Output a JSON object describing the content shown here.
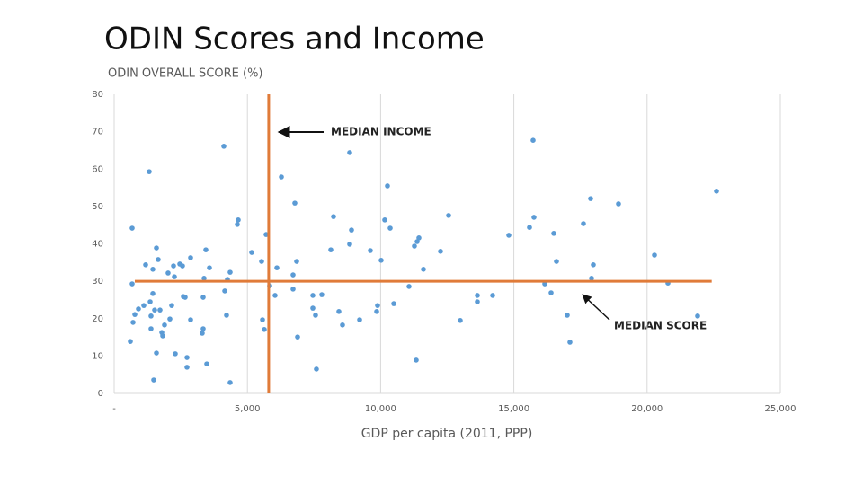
{
  "chart_data": {
    "type": "scatter",
    "title": "ODIN Scores and Income",
    "y_label": "ODIN OVERALL SCORE (%)",
    "x_label": "GDP per capita (2011, PPP)",
    "color": "#5b9bd5",
    "grid": "x",
    "xlim": [
      0,
      25000
    ],
    "ylim": [
      0,
      80
    ],
    "xticks": [
      {
        "value": 0,
        "label": "-"
      },
      {
        "value": 5000,
        "label": "5,000"
      },
      {
        "value": 10000,
        "label": "10,000"
      },
      {
        "value": 15000,
        "label": "15,000"
      },
      {
        "value": 20000,
        "label": "20,000"
      },
      {
        "value": 25000,
        "label": "25,000"
      }
    ],
    "yticks": [
      0,
      10,
      20,
      30,
      40,
      50,
      60,
      70,
      80
    ],
    "median_color": "#e07b39",
    "median_lines": [
      {
        "axis": "x",
        "value": 5800
      },
      {
        "axis": "y",
        "value": 30
      }
    ],
    "annotations": [
      "MEDIAN INCOME",
      "MEDIAN SCORE"
    ],
    "x": [
      1316,
      4116,
      675,
      607,
      709,
      675,
      776,
      911,
      1113,
      1181,
      1350,
      1383,
      1383,
      1451,
      1451,
      1586,
      1653,
      1518,
      1721,
      1788,
      1822,
      1889,
      2024,
      2092,
      2159,
      2227,
      2261,
      2463,
      2564,
      2598,
      2665,
      2868,
      2868,
      2294,
      2733,
      2733,
      1586,
      1484,
      3340,
      3374,
      3441,
      3576,
      3340,
      3306,
      3475,
      4150,
      4251,
      4352,
      4217,
      4352,
      4622,
      4656,
      5162,
      5533,
      5702,
      5567,
      5634,
      5837,
      6107,
      6039,
      6276,
      6714,
      6781,
      6849,
      6714,
      6883,
      7456,
      7456,
      7557,
      7793,
      7590,
      8232,
      8131,
      8434,
      8569,
      8839,
      8907,
      8839,
      9211,
      9615,
      9885,
      9852,
      10020,
      10155,
      10256,
      10358,
      10493,
      11066,
      11268,
      11370,
      11437,
      11336,
      11606,
      12247,
      12551,
      12989,
      13630,
      13630,
      14204,
      14811,
      15587,
      15722,
      15755,
      16160,
      16397,
      16498,
      16599,
      17004,
      17105,
      17611,
      17881,
      17982,
      17915,
      18927,
      20277,
      20783,
      21896,
      22605
    ],
    "values": [
      59.3,
      66.1,
      44.2,
      13.9,
      19,
      29.3,
      21.1,
      22.6,
      23.5,
      34.4,
      24.5,
      20.7,
      17.3,
      26.7,
      33.2,
      38.9,
      35.8,
      22.3,
      22.3,
      16.3,
      15.4,
      18.3,
      32.2,
      19.9,
      23.5,
      34.1,
      31.2,
      34.6,
      34.1,
      25.9,
      25.7,
      36.3,
      19.7,
      10.6,
      9.6,
      7,
      10.8,
      3.6,
      25.7,
      30.8,
      38.4,
      33.6,
      17.3,
      16.1,
      7.9,
      27.4,
      30.5,
      32.4,
      20.9,
      2.9,
      45.2,
      46.4,
      37.7,
      35.3,
      42.5,
      19.7,
      17.1,
      28.8,
      33.6,
      26.2,
      57.9,
      31.7,
      50.9,
      35.3,
      27.9,
      15.1,
      26.2,
      22.8,
      20.9,
      26.4,
      6.5,
      47.3,
      38.4,
      21.9,
      18.3,
      64.4,
      43.7,
      39.9,
      19.7,
      38.2,
      23.5,
      21.9,
      35.6,
      46.4,
      55.5,
      44.2,
      24,
      28.6,
      39.4,
      40.6,
      41.6,
      8.9,
      33.2,
      38,
      47.6,
      19.5,
      26.2,
      24.5,
      26.2,
      42.3,
      44.4,
      67.7,
      47.1,
      29.3,
      26.9,
      42.8,
      35.3,
      20.9,
      13.7,
      45.4,
      52.1,
      34.4,
      30.8,
      50.7,
      37,
      29.5,
      20.7,
      54.1
    ]
  }
}
